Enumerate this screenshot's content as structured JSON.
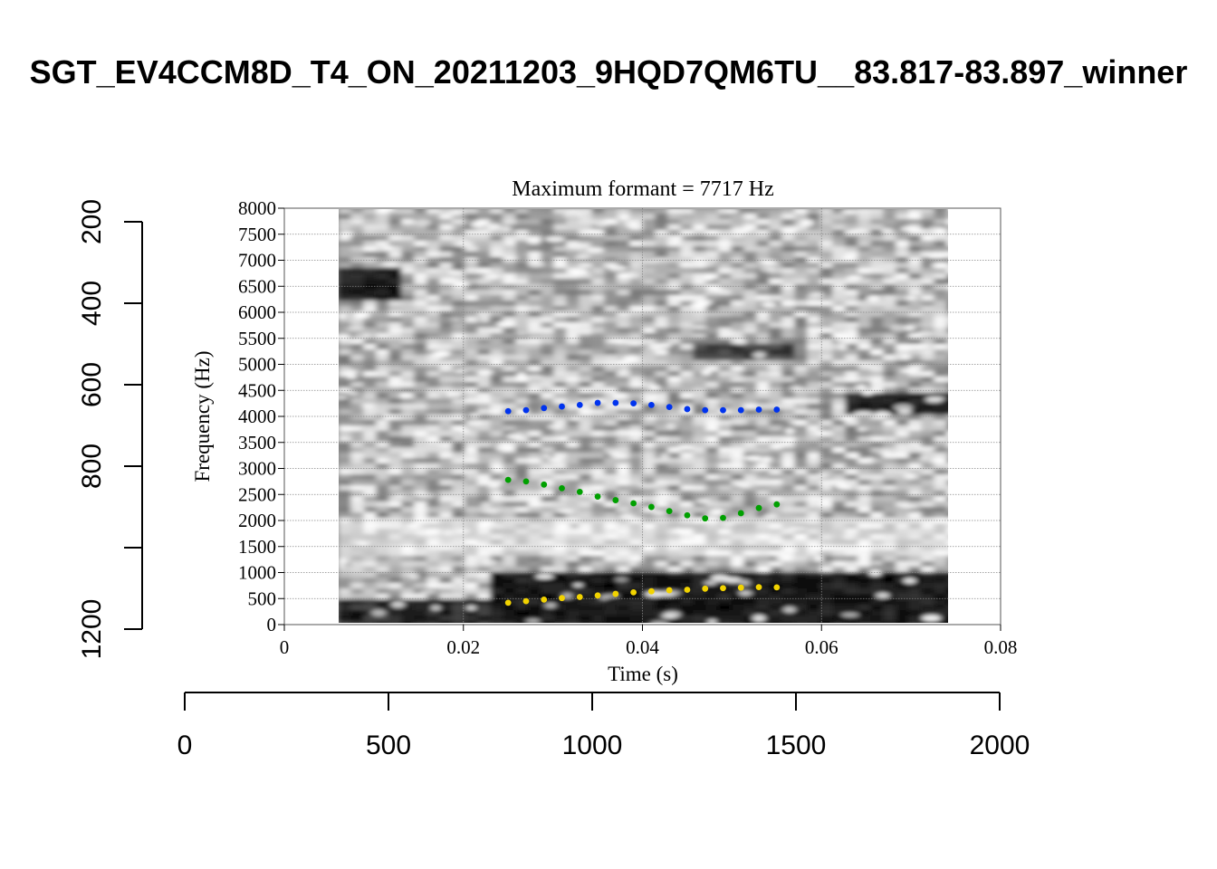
{
  "figure": {
    "title": "SGT_EV4CCM8D_T4_ON_20211203_9HQD7QM6TU__83.817-83.897_winner"
  },
  "chart_data": [
    {
      "type": "scatter",
      "title": "Maximum formant = 7717 Hz",
      "xlabel": "Time (s)",
      "ylabel": "Frequency (Hz)",
      "xlim": [
        0,
        0.08
      ],
      "ylim": [
        0,
        8000
      ],
      "x_ticks": [
        0,
        0.02,
        0.04,
        0.06,
        0.08
      ],
      "x_tick_labels": [
        "0",
        "0.02",
        "0.04",
        "0.06",
        "0.08"
      ],
      "y_ticks": [
        0,
        500,
        1000,
        1500,
        2000,
        2500,
        3000,
        3500,
        4000,
        4500,
        5000,
        5500,
        6000,
        6500,
        7000,
        7500,
        8000
      ],
      "y_tick_labels": [
        "0",
        "500",
        "1000",
        "1500",
        "2000",
        "2500",
        "3000",
        "3500",
        "4000",
        "4500",
        "5000",
        "5500",
        "6000",
        "6500",
        "7000",
        "7500",
        "8000"
      ],
      "grid": true,
      "background": "grayscale spectrogram spanning 0.006 s to 0.074 s",
      "spectrogram_time_range": [
        0.006,
        0.074
      ],
      "series": [
        {
          "color": "#f2d300",
          "x": [
            0.025,
            0.027,
            0.029,
            0.031,
            0.033,
            0.035,
            0.037,
            0.039,
            0.041,
            0.043,
            0.045,
            0.047,
            0.049,
            0.051,
            0.053,
            0.055
          ],
          "y": [
            420,
            450,
            480,
            510,
            530,
            560,
            590,
            620,
            640,
            660,
            670,
            690,
            700,
            710,
            720,
            715
          ]
        },
        {
          "color": "#00a000",
          "x": [
            0.025,
            0.027,
            0.029,
            0.031,
            0.033,
            0.035,
            0.037,
            0.039,
            0.041,
            0.043,
            0.045,
            0.047,
            0.049,
            0.051,
            0.053,
            0.055
          ],
          "y": [
            2780,
            2750,
            2690,
            2620,
            2550,
            2460,
            2390,
            2330,
            2260,
            2180,
            2100,
            2040,
            2050,
            2140,
            2240,
            2310
          ]
        },
        {
          "color": "#0033ee",
          "x": [
            0.025,
            0.027,
            0.029,
            0.031,
            0.033,
            0.035,
            0.037,
            0.039,
            0.041,
            0.043,
            0.045,
            0.047,
            0.049,
            0.051,
            0.053,
            0.055
          ],
          "y": [
            4100,
            4120,
            4160,
            4190,
            4220,
            4260,
            4260,
            4250,
            4220,
            4180,
            4140,
            4120,
            4120,
            4120,
            4130,
            4130
          ]
        }
      ]
    },
    {
      "type": "axes",
      "left_axis": {
        "ticks": [
          200,
          400,
          600,
          800,
          1000,
          1200
        ],
        "tick_labels": [
          "200",
          "400",
          "600",
          "800",
          "",
          "1200"
        ],
        "reversed": true
      },
      "bottom_axis": {
        "ticks": [
          0,
          500,
          1000,
          1500,
          2000
        ],
        "tick_labels": [
          "0",
          "500",
          "1000",
          "1500",
          "2000"
        ]
      }
    }
  ]
}
